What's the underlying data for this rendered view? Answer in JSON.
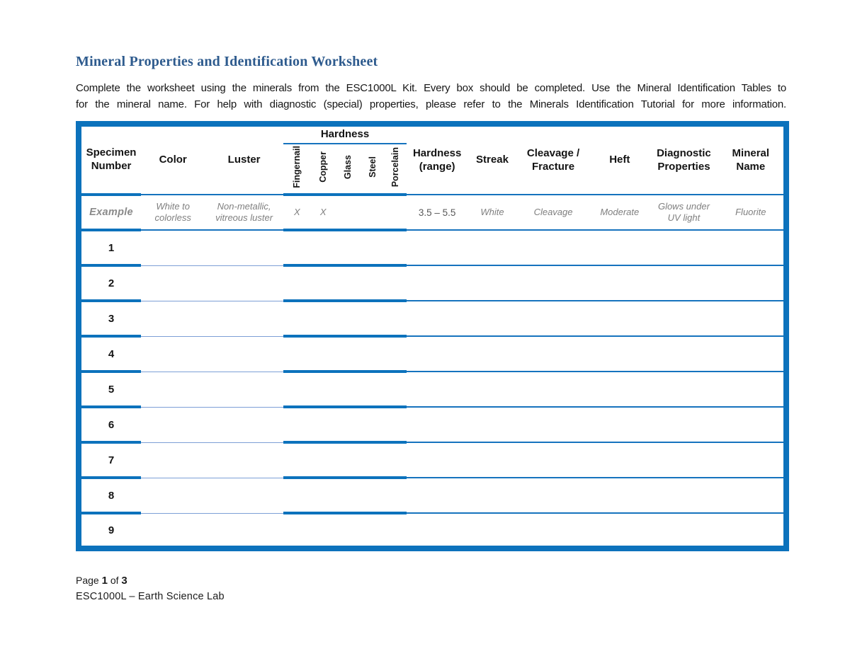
{
  "document": {
    "title": "Mineral Properties and Identification Worksheet",
    "intro_line1": "Complete the worksheet using the minerals from the ESC1000L Kit. Every box should be completed. Use the Mineral Identification Tables to",
    "intro_line2": "for the mineral name. For help with diagnostic (special) properties, please refer to the Minerals Identification Tutorial for more information.",
    "footer": {
      "page_word": "Page",
      "page_number": "1",
      "of_word": "of",
      "total_pages": "3",
      "course": "ESC1000L – Earth Science Lab"
    }
  },
  "table": {
    "headers": {
      "specimen": "Specimen Number",
      "color": "Color",
      "luster": "Luster",
      "hardness_group": "Hardness",
      "hardness_sub": [
        "Fingernail",
        "Copper",
        "Glass",
        "Steel",
        "Porcelain"
      ],
      "hardness_range": "Hardness (range)",
      "streak": "Streak",
      "cleavage": "Cleavage / Fracture",
      "heft": "Heft",
      "diagnostic": "Diagnostic Properties",
      "mineral": "Mineral Name"
    },
    "example": {
      "label": "Example",
      "color": "White to colorless",
      "luster": "Non-metallic, vitreous luster",
      "fingernail": "X",
      "copper": "X",
      "glass": "",
      "steel": "",
      "porcelain": "",
      "hardness_range": "3.5 – 5.5",
      "streak": "White",
      "cleavage": "Cleavage",
      "heft": "Moderate",
      "diagnostic": "Glows under UV light",
      "mineral": "Fluorite"
    },
    "specimen_rows": [
      "1",
      "2",
      "3",
      "4",
      "5",
      "6",
      "7",
      "8",
      "9"
    ]
  },
  "colors": {
    "title": "#2e5b8e",
    "border_outer": "#0c72bc",
    "border_medium": "#1673be",
    "border_light": "#7d9fd6",
    "example_text": "#7f7f7f"
  }
}
